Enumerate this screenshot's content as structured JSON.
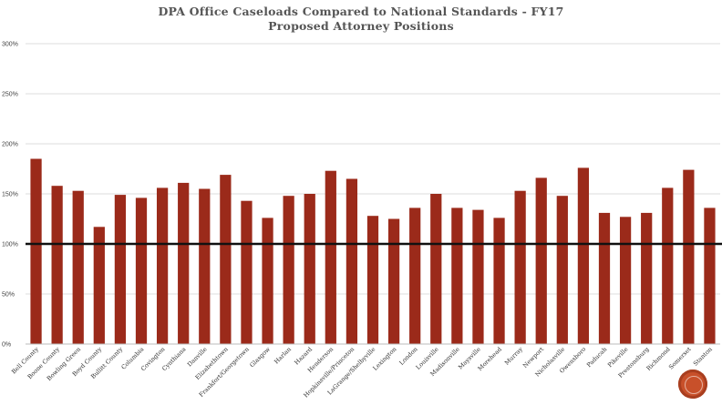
{
  "chart_data": {
    "type": "bar",
    "title": "DPA Office Caseloads Compared to National Standards - FY17",
    "subtitle": "Proposed Attorney Positions",
    "xlabel": "",
    "ylabel": "",
    "ylim": [
      0,
      300
    ],
    "yticks": [
      "0%",
      "50%",
      "100%",
      "150%",
      "200%",
      "250%",
      "300%"
    ],
    "ytick_values": [
      0,
      50,
      100,
      150,
      200,
      250,
      300
    ],
    "reference_line": 100,
    "bar_color": "#9b2a1a",
    "reference_color": "#111111",
    "categories": [
      "Bell County",
      "Boone County",
      "Bowling Green",
      "Boyd County",
      "Bullitt County",
      "Columbia",
      "Covington",
      "Cynthiana",
      "Danville",
      "Elizabethtown",
      "Frankfort/Georgetown",
      "Glasgow",
      "Harlan",
      "Hazard",
      "Henderson",
      "Hopkinsville/Princeton",
      "LaGrange/Shelbyville",
      "Lexington",
      "London",
      "Louisville",
      "Madisonville",
      "Maysville",
      "Morehead",
      "Murray",
      "Newport",
      "Nicholasville",
      "Owensboro",
      "Paducah",
      "Pikeville",
      "Prestonsburg",
      "Richmond",
      "Somerset",
      "Stanton"
    ],
    "values": [
      185,
      158,
      153,
      117,
      149,
      146,
      156,
      161,
      155,
      169,
      143,
      126,
      148,
      150,
      173,
      165,
      128,
      125,
      136,
      150,
      136,
      134,
      126,
      153,
      166,
      148,
      176,
      131,
      127,
      131,
      156,
      174,
      136
    ]
  },
  "logo": {
    "name": "seal-icon",
    "color": "#c8502a"
  }
}
